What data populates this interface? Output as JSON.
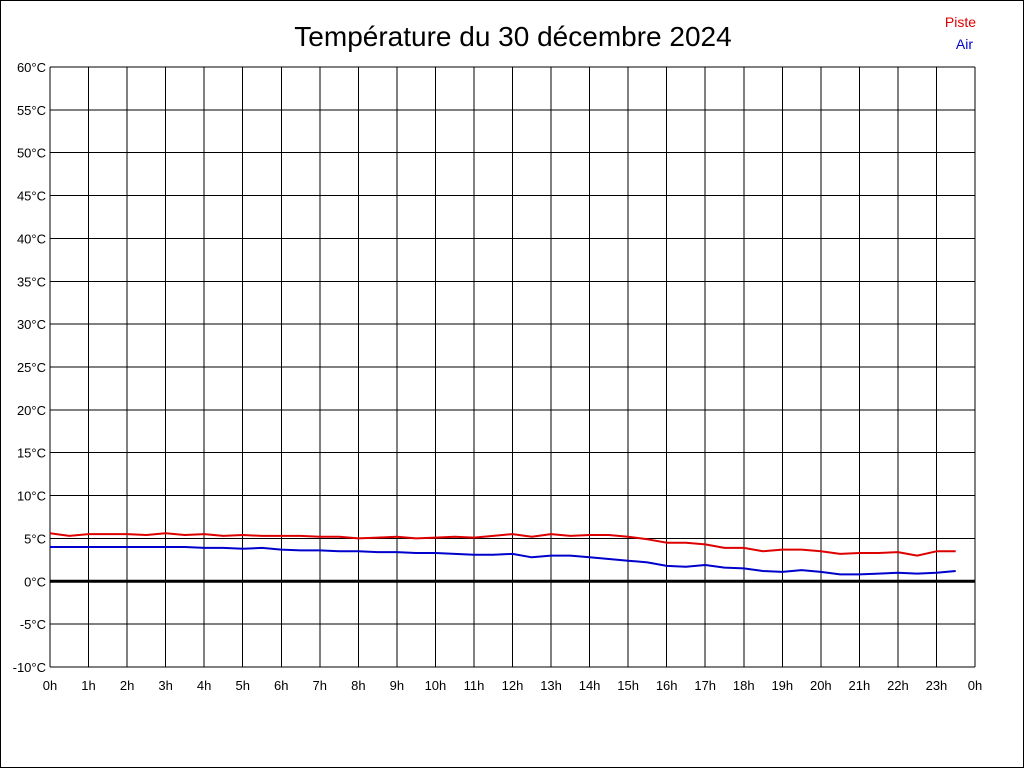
{
  "chart_data": {
    "type": "line",
    "title": "Température du 30 décembre 2024",
    "xlabel": "",
    "ylabel": "",
    "x_ticks": [
      "0h",
      "1h",
      "2h",
      "3h",
      "4h",
      "5h",
      "6h",
      "7h",
      "8h",
      "9h",
      "10h",
      "11h",
      "12h",
      "13h",
      "14h",
      "15h",
      "16h",
      "17h",
      "18h",
      "19h",
      "20h",
      "21h",
      "22h",
      "23h",
      "0h"
    ],
    "y_ticks": [
      "60°C",
      "55°C",
      "50°C",
      "45°C",
      "40°C",
      "35°C",
      "30°C",
      "25°C",
      "20°C",
      "15°C",
      "10°C",
      "5°C",
      "0°C",
      "-5°C",
      "-10°C"
    ],
    "xlim": [
      0,
      24
    ],
    "ylim": [
      -10,
      60
    ],
    "grid": true,
    "zero_line": true,
    "legend_position": "top-right",
    "series": [
      {
        "name": "Piste",
        "color": "#dd0000",
        "x": [
          0,
          0.5,
          1,
          1.5,
          2,
          2.5,
          3,
          3.5,
          4,
          4.5,
          5,
          5.5,
          6,
          6.5,
          7,
          7.5,
          8,
          8.5,
          9,
          9.5,
          10,
          10.5,
          11,
          11.5,
          12,
          12.5,
          13,
          13.5,
          14,
          14.5,
          15,
          15.5,
          16,
          16.5,
          17,
          17.5,
          18,
          18.5,
          19,
          19.5,
          20,
          20.5,
          21,
          21.5,
          22,
          22.5,
          23,
          23.5
        ],
        "values": [
          5.6,
          5.3,
          5.5,
          5.5,
          5.5,
          5.4,
          5.6,
          5.4,
          5.5,
          5.3,
          5.4,
          5.3,
          5.3,
          5.3,
          5.2,
          5.2,
          5.0,
          5.1,
          5.2,
          5.0,
          5.1,
          5.2,
          5.1,
          5.3,
          5.5,
          5.2,
          5.5,
          5.3,
          5.4,
          5.4,
          5.2,
          4.9,
          4.5,
          4.5,
          4.3,
          3.9,
          3.9,
          3.5,
          3.7,
          3.7,
          3.5,
          3.2,
          3.3,
          3.3,
          3.4,
          3.0,
          3.5,
          3.5
        ]
      },
      {
        "name": "Air",
        "color": "#0000cc",
        "x": [
          0,
          0.5,
          1,
          1.5,
          2,
          2.5,
          3,
          3.5,
          4,
          4.5,
          5,
          5.5,
          6,
          6.5,
          7,
          7.5,
          8,
          8.5,
          9,
          9.5,
          10,
          10.5,
          11,
          11.5,
          12,
          12.5,
          13,
          13.5,
          14,
          14.5,
          15,
          15.5,
          16,
          16.5,
          17,
          17.5,
          18,
          18.5,
          19,
          19.5,
          20,
          20.5,
          21,
          21.5,
          22,
          22.5,
          23,
          23.5
        ],
        "values": [
          4.0,
          4.0,
          4.0,
          4.0,
          4.0,
          4.0,
          4.0,
          4.0,
          3.9,
          3.9,
          3.8,
          3.9,
          3.7,
          3.6,
          3.6,
          3.5,
          3.5,
          3.4,
          3.4,
          3.3,
          3.3,
          3.2,
          3.1,
          3.1,
          3.2,
          2.8,
          3.0,
          3.0,
          2.8,
          2.6,
          2.4,
          2.2,
          1.8,
          1.7,
          1.9,
          1.6,
          1.5,
          1.2,
          1.1,
          1.3,
          1.1,
          0.8,
          0.8,
          0.9,
          1.0,
          0.9,
          1.0,
          1.2
        ]
      }
    ]
  }
}
